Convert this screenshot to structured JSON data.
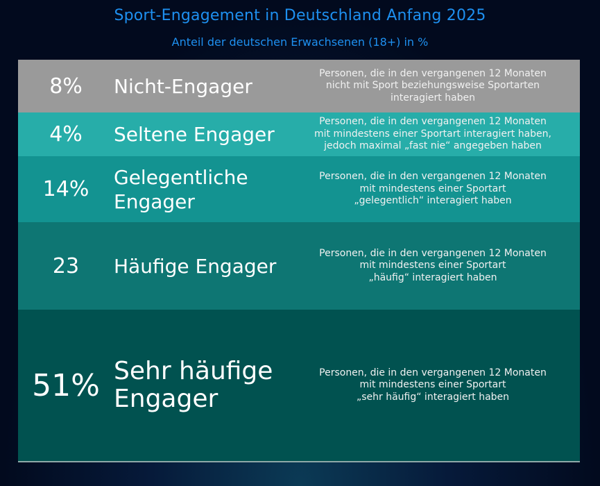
{
  "chart_data": {
    "type": "table",
    "title": "Sport-Engagement in Deutschland Anfang 2025",
    "subtitle": "Anteil der deutschen Erwachsenen (18+) in %",
    "rows": [
      {
        "value": 8,
        "value_label": "8%",
        "category": "Nicht-Engager",
        "description": [
          "Personen, die in den vergangenen 12 Monaten",
          "nicht mit Sport beziehungsweise Sportarten",
          "interagiert haben"
        ],
        "color": "#9a9a9a"
      },
      {
        "value": 4,
        "value_label": "4%",
        "category": "Seltene Engager",
        "description": [
          "Personen, die in den vergangenen 12 Monaten",
          "mit mindestens einer Sportart interagiert haben,",
          "jedoch maximal „fast nie“ angegeben haben"
        ],
        "color": "#27ada9"
      },
      {
        "value": 14,
        "value_label": "14%",
        "category": "Gelegentliche Engager",
        "description": [
          "Personen, die in den vergangenen 12 Monaten",
          "mit mindestens einer Sportart",
          "„gelegentlich“ interagiert haben"
        ],
        "color": "#139391"
      },
      {
        "value": 23,
        "value_label": "23",
        "category": "Häufige Engager",
        "description": [
          "Personen, die in den vergangenen 12 Monaten",
          "mit mindestens einer Sportart",
          "„häufig“ interagiert haben"
        ],
        "color": "#0e7673"
      },
      {
        "value": 51,
        "value_label": "51%",
        "category": "Sehr häufige Engager",
        "description": [
          "Personen, die in den vergangenen 12 Monaten",
          "mit mindestens einer Sportart",
          "„sehr häufig“ interagiert haben"
        ],
        "color": "#015250"
      }
    ]
  }
}
